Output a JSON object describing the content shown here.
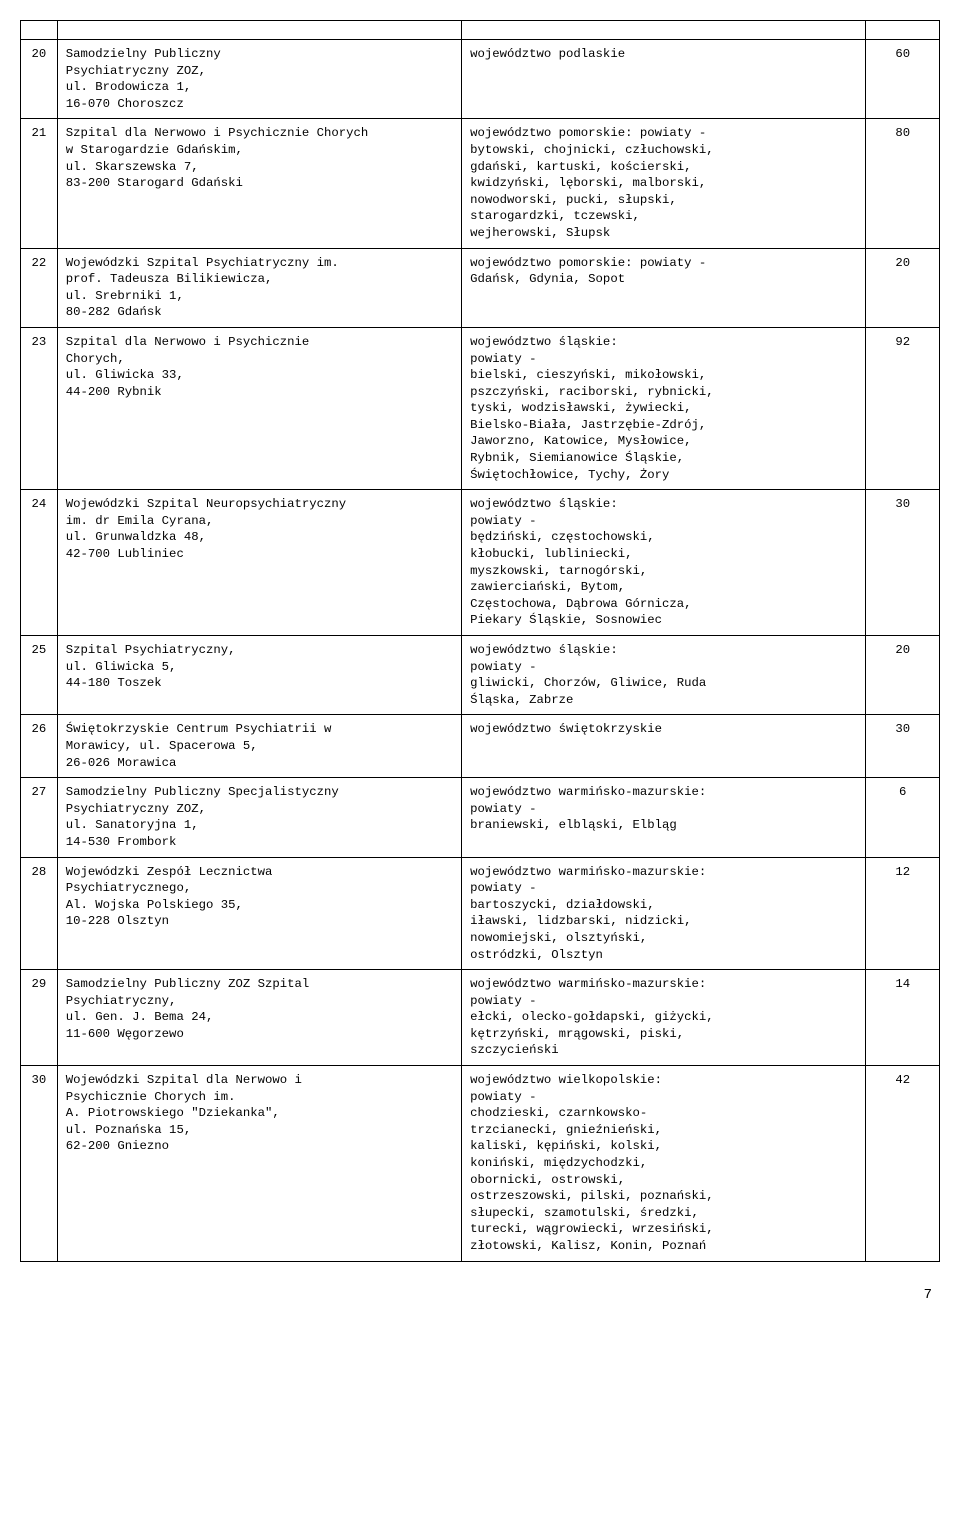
{
  "table": {
    "font_family": "Courier New",
    "border_color": "#000000",
    "background_color": "#ffffff",
    "text_color": "#000000",
    "rows": [
      {
        "num": "20",
        "institution": "Samodzielny Publiczny\nPsychiatryczny ZOZ,\nul. Brodowicza 1,\n16-070 Choroszcz",
        "area": "województwo podlaskie",
        "value": "60"
      },
      {
        "num": "21",
        "institution": "Szpital dla Nerwowo i Psychicznie Chorych\nw Starogardzie Gdańskim,\nul. Skarszewska 7,\n83-200 Starogard Gdański",
        "area": "województwo pomorskie: powiaty -\nbytowski, chojnicki, człuchowski,\ngdański, kartuski, kościerski,\nkwidzyński, lęborski, malborski,\nnowodworski, pucki, słupski,\nstarogardzki, tczewski,\nwejherowski, Słupsk",
        "value": "80"
      },
      {
        "num": "22",
        "institution": "Wojewódzki Szpital Psychiatryczny im.\nprof. Tadeusza Bilikiewicza,\nul. Srebrniki 1,\n80-282 Gdańsk",
        "area": "województwo pomorskie: powiaty -\nGdańsk, Gdynia, Sopot",
        "value": "20"
      },
      {
        "num": "23",
        "institution": "Szpital dla Nerwowo i Psychicznie\nChorych,\nul. Gliwicka 33,\n44-200 Rybnik",
        "area": "województwo śląskie:\npowiaty -\nbielski, cieszyński, mikołowski,\npszczyński, raciborski, rybnicki,\ntyski, wodzisławski, żywiecki,\nBielsko-Biała, Jastrzębie-Zdrój,\nJaworzno, Katowice, Mysłowice,\nRybnik, Siemianowice Śląskie,\nŚwiętochłowice, Tychy, Żory",
        "value": "92"
      },
      {
        "num": "24",
        "institution": "Wojewódzki Szpital Neuropsychiatryczny\nim. dr Emila Cyrana,\nul. Grunwaldzka 48,\n42-700 Lubliniec",
        "area": "województwo śląskie:\npowiaty -\nbędziński, częstochowski,\nkłobucki, lubliniecki,\nmyszkowski, tarnogórski,\nzawierciański, Bytom,\nCzęstochowa, Dąbrowa Górnicza,\nPiekary Śląskie, Sosnowiec",
        "value": "30"
      },
      {
        "num": "25",
        "institution": "Szpital Psychiatryczny,\nul. Gliwicka 5,\n44-180 Toszek",
        "area": "województwo śląskie:\npowiaty -\ngliwicki, Chorzów, Gliwice, Ruda\nŚląska, Zabrze",
        "value": "20"
      },
      {
        "num": "26",
        "institution": "Świętokrzyskie Centrum Psychiatrii w\nMorawicy, ul. Spacerowa 5,\n26-026 Morawica",
        "area": "województwo świętokrzyskie",
        "value": "30"
      },
      {
        "num": "27",
        "institution": "Samodzielny Publiczny Specjalistyczny\nPsychiatryczny ZOZ,\nul. Sanatoryjna 1,\n14-530 Frombork",
        "area": "województwo warmińsko-mazurskie:\npowiaty -\nbraniewski, elbląski, Elbląg",
        "value": "6"
      },
      {
        "num": "28",
        "institution": "Wojewódzki Zespół Lecznictwa\nPsychiatrycznego,\nAl. Wojska Polskiego 35,\n10-228 Olsztyn",
        "area": "województwo warmińsko-mazurskie:\npowiaty -\nbartoszycki, działdowski,\niławski, lidzbarski, nidzicki,\nnowomiejski, olsztyński,\nostródzki, Olsztyn",
        "value": "12"
      },
      {
        "num": "29",
        "institution": "Samodzielny Publiczny ZOZ Szpital\nPsychiatryczny,\nul. Gen. J. Bema 24,\n11-600 Węgorzewo",
        "area": "województwo warmińsko-mazurskie:\npowiaty -\nełcki, olecko-gołdapski, giżycki,\nkętrzyński, mrągowski, piski,\nszczycieński",
        "value": "14"
      },
      {
        "num": "30",
        "institution": "Wojewódzki Szpital dla Nerwowo i\nPsychicznie Chorych im.\nA. Piotrowskiego \"Dziekanka\",\nul. Poznańska 15,\n62-200 Gniezno",
        "area": "województwo wielkopolskie:\npowiaty -\nchodzieski, czarnkowsko-\ntrzcianecki, gnieźnieński,\nkaliski, kępiński, kolski,\nkoniński, międzychodzki,\nobornicki, ostrowski,\nostrzeszowski, pilski, poznański,\nsłupecki, szamotulski, średzki,\nturecki, wągrowiecki, wrzesiński,\nzłotowski, Kalisz, Konin, Poznań",
        "value": "42"
      }
    ]
  },
  "page_number": "7"
}
